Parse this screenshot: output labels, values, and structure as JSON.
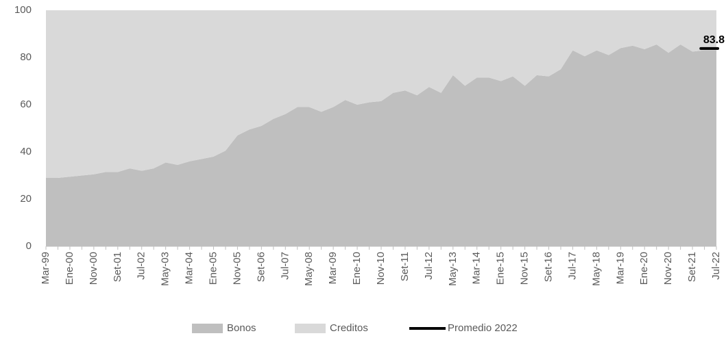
{
  "chart_data": {
    "type": "stacked_area",
    "categories": [
      "Mar-99",
      null,
      "Ene-00",
      null,
      "Nov-00",
      null,
      "Set-01",
      null,
      "Jul-02",
      null,
      "May-03",
      null,
      "Mar-04",
      null,
      "Ene-05",
      null,
      "Nov-05",
      null,
      "Set-06",
      null,
      "Jul-07",
      null,
      "May-08",
      null,
      "Mar-09",
      null,
      "Ene-10",
      null,
      "Nov-10",
      null,
      "Set-11",
      null,
      "Jul-12",
      null,
      "May-13",
      null,
      "Mar-14",
      null,
      "Ene-15",
      null,
      "Nov-15",
      null,
      "Set-16",
      null,
      "Jul-17",
      null,
      "May-18",
      null,
      "Mar-19",
      null,
      "Ene-20",
      null,
      "Nov-20",
      null,
      "Set-21",
      null,
      "Jul-22"
    ],
    "series": [
      {
        "name": "Bonos",
        "color": "#bfbfbf",
        "values": [
          29,
          29,
          29.5,
          30,
          30.5,
          31.5,
          31.5,
          33,
          32,
          33,
          35.5,
          34.5,
          36,
          37,
          38,
          40.5,
          47,
          49.5,
          51,
          54,
          56,
          59,
          59,
          57,
          59,
          62,
          60,
          61,
          61.5,
          65,
          66,
          64,
          67.5,
          65,
          72.5,
          68,
          71.5,
          71.5,
          70,
          72,
          68,
          72.5,
          72,
          75,
          83,
          80.5,
          83,
          81,
          84,
          85,
          83.5,
          85.5,
          82,
          85.5,
          82.5,
          83,
          83
        ]
      },
      {
        "name": "Creditos",
        "color": "#d9d9d9",
        "values": [
          71,
          71,
          70.5,
          70,
          69.5,
          68.5,
          68.5,
          67,
          68,
          67,
          64.5,
          65.5,
          64,
          63,
          62,
          59.5,
          53,
          50.5,
          49,
          46,
          44,
          41,
          41,
          43,
          41,
          38,
          40,
          39,
          38.5,
          35,
          34,
          36,
          32.5,
          35,
          27.5,
          32,
          28.5,
          28.5,
          30,
          28,
          32,
          27.5,
          28,
          25,
          17,
          19.5,
          17,
          19,
          16,
          15,
          16.5,
          14.5,
          18,
          14.5,
          17.5,
          17,
          17
        ]
      }
    ],
    "promedio": {
      "name": "Promedio 2022",
      "value": 83.8,
      "color": "#000000"
    },
    "ylim": [
      0,
      100
    ],
    "yticks": [
      0,
      20,
      40,
      60,
      80,
      100
    ],
    "legend": "bottom"
  }
}
